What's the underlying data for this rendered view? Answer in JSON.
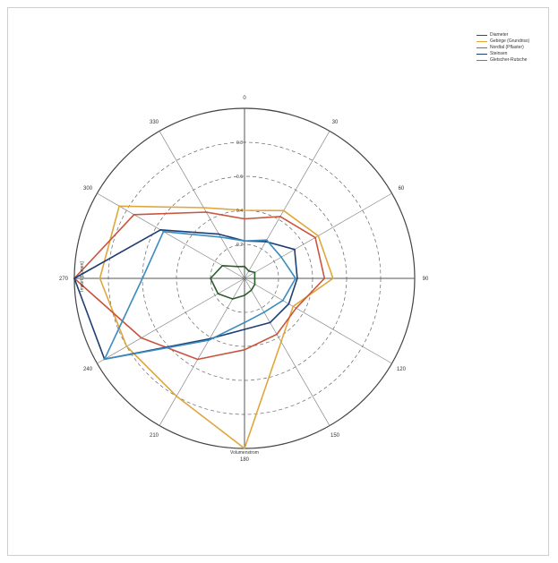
{
  "chart_data": {
    "type": "polar",
    "angle_labels": [
      "0",
      "30",
      "60",
      "90",
      "120",
      "150",
      "180",
      "210",
      "240",
      "270",
      "300",
      "330"
    ],
    "radial_ticks": [
      "0.2",
      "0.4",
      "0.6",
      "0.8"
    ],
    "rmax": 1.0,
    "axis_title_left": "Import [Lumen]",
    "axis_title_bottom": "Volumenstrom",
    "angles": [
      0,
      30,
      60,
      90,
      120,
      150,
      180,
      210,
      240,
      270,
      300,
      330
    ],
    "series": [
      {
        "name": "Diameter",
        "color": "#2e5c2e",
        "values": [
          0.07,
          0.05,
          0.07,
          0.06,
          0.07,
          0.08,
          0.1,
          0.14,
          0.18,
          0.2,
          0.15,
          0.08
        ]
      },
      {
        "name": "Gebirge (Grundriss)",
        "color": "#e0a63c",
        "values": [
          0.4,
          0.46,
          0.5,
          0.52,
          0.33,
          0.43,
          1.0,
          0.8,
          0.8,
          0.85,
          0.85,
          0.48
        ]
      },
      {
        "name": "Nordtal (Pflaster)",
        "color": "#c8553d",
        "values": [
          0.35,
          0.42,
          0.48,
          0.47,
          0.35,
          0.38,
          0.42,
          0.55,
          0.7,
          1.0,
          0.75,
          0.45
        ]
      },
      {
        "name": "Steinsen",
        "color": "#1d3f73",
        "values": [
          0.22,
          0.25,
          0.34,
          0.31,
          0.3,
          0.3,
          0.3,
          0.41,
          0.95,
          1.0,
          0.57,
          0.3
        ]
      },
      {
        "name": "Gletscher-Rutsche",
        "color": "#3c8cc0",
        "values": [
          0.22,
          0.26,
          0.25,
          0.3,
          0.26,
          0.23,
          0.26,
          0.42,
          0.95,
          0.6,
          0.55,
          0.28
        ]
      }
    ]
  }
}
